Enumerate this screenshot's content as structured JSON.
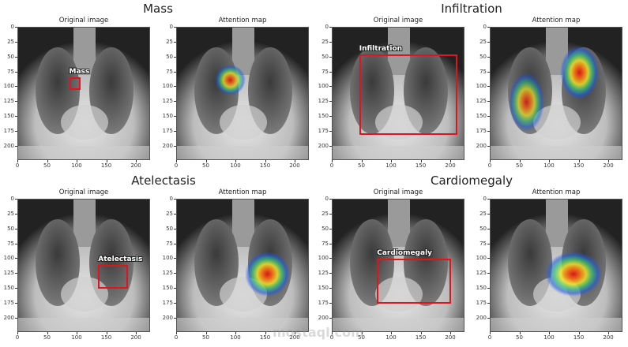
{
  "figures": [
    {
      "title": "Mass",
      "panels": [
        {
          "title": "Original image",
          "box": {
            "label": "Mass",
            "x0": 86,
            "y0": 83,
            "x1": 105,
            "y1": 105
          }
        },
        {
          "title": "Attention map",
          "heat": [
            {
              "cx": 90,
              "cy": 88,
              "rx": 26,
              "ry": 26,
              "intensity": 0.9
            }
          ]
        }
      ]
    },
    {
      "title": "Infiltration",
      "panels": [
        {
          "title": "Original image",
          "box": {
            "label": "Infiltration",
            "x0": 45,
            "y0": 45,
            "x1": 210,
            "y1": 180
          }
        },
        {
          "title": "Attention map",
          "heat": [
            {
              "cx": 150,
              "cy": 75,
              "rx": 33,
              "ry": 45,
              "intensity": 1.0
            },
            {
              "cx": 60,
              "cy": 125,
              "rx": 30,
              "ry": 50,
              "intensity": 0.85
            }
          ]
        }
      ]
    },
    {
      "title": "Atelectasis",
      "panels": [
        {
          "title": "Original image",
          "box": {
            "label": "Atelectasis",
            "x0": 135,
            "y0": 110,
            "x1": 185,
            "y1": 150
          }
        },
        {
          "title": "Attention map",
          "heat": [
            {
              "cx": 152,
              "cy": 125,
              "rx": 38,
              "ry": 38,
              "intensity": 1.0
            }
          ]
        }
      ]
    },
    {
      "title": "Cardiomegaly",
      "panels": [
        {
          "title": "Original image",
          "box": {
            "label": "Cardiomegaly",
            "x0": 75,
            "y0": 100,
            "x1": 200,
            "y1": 175
          }
        },
        {
          "title": "Attention map",
          "heat": [
            {
              "cx": 140,
              "cy": 125,
              "rx": 48,
              "ry": 38,
              "intensity": 1.0
            }
          ]
        }
      ]
    }
  ],
  "axes": {
    "x_ticks": [
      0,
      50,
      100,
      150,
      200
    ],
    "y_ticks": [
      0,
      25,
      50,
      75,
      100,
      125,
      150,
      175,
      200
    ],
    "extent": 224
  },
  "colors": {
    "box": "#e0141e"
  },
  "watermark": "mostaql.com"
}
